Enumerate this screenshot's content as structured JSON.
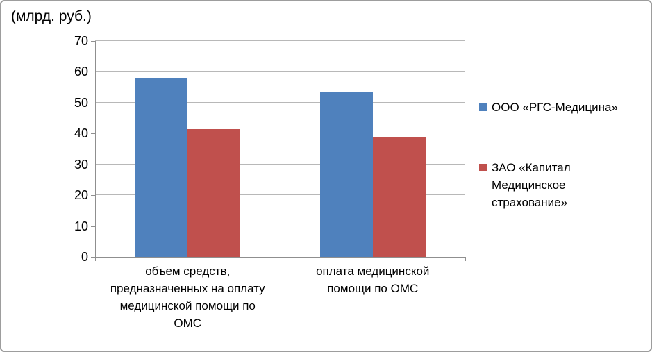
{
  "chart_data": {
    "type": "bar",
    "title": "(млрд. руб.)",
    "categories": [
      "объем средств,\nпредназначенных на оплату\nмедицинской помощи по\nОМС",
      "оплата медицинской\nпомощи по ОМС"
    ],
    "series": [
      {
        "name": "ООО «РГС-Медицина»",
        "color": "#4F81BD",
        "values": [
          58,
          53.5
        ]
      },
      {
        "name": "ЗАО «Капитал\nМедицинское\nстрахование»",
        "color": "#C0504D",
        "values": [
          41.5,
          39
        ]
      }
    ],
    "ylim": [
      0,
      70
    ],
    "yticks": [
      0,
      10,
      20,
      30,
      40,
      50,
      60,
      70
    ],
    "xlabel": "",
    "ylabel": "",
    "grid": true,
    "legend_position": "right",
    "gridline_color": "#b8b8b8",
    "axis_color": "#8f8f8f",
    "background_color": "#ffffff",
    "border_color": "#9d9d9d",
    "text_color": "#000000"
  }
}
